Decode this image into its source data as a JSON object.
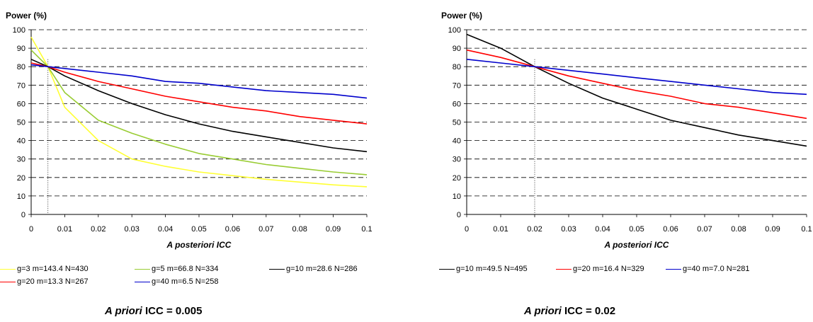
{
  "chart_data": [
    {
      "type": "line",
      "ylabel": "Power (%)",
      "xlabel": "A posteriori ICC",
      "xlim": [
        0,
        0.1
      ],
      "ylim": [
        0,
        100
      ],
      "x_ticks": [
        "0",
        "0.01",
        "0.02",
        "0.03",
        "0.04",
        "0.05",
        "0.06",
        "0.07",
        "0.08",
        "0.09",
        "0.1"
      ],
      "y_ticks": [
        "0",
        "10",
        "20",
        "30",
        "40",
        "50",
        "60",
        "70",
        "80",
        "90",
        "100"
      ],
      "grid": "horizontal dashed",
      "reference_line_x": 0.005,
      "x": [
        0,
        0.005,
        0.01,
        0.02,
        0.03,
        0.04,
        0.05,
        0.06,
        0.07,
        0.08,
        0.09,
        0.1
      ],
      "series": [
        {
          "name": "g=3 m=143.4 N=430",
          "color": "#ffff33",
          "values": [
            96,
            80,
            58,
            40,
            30,
            26,
            23,
            21,
            19,
            17.5,
            16,
            15
          ]
        },
        {
          "name": "g=5 m=66.8 N=334",
          "color": "#99cc33",
          "values": [
            89,
            80,
            66,
            51,
            44,
            38,
            33,
            30,
            27,
            25,
            23,
            21.5
          ]
        },
        {
          "name": "g=10 m=28.6 N=286",
          "color": "#000000",
          "values": [
            84,
            80,
            75,
            67,
            60,
            54,
            49,
            45,
            42,
            39,
            36,
            34
          ]
        },
        {
          "name": "g=20 m=13.3 N=267",
          "color": "#ff0000",
          "values": [
            82,
            80,
            77,
            72,
            68,
            64,
            61,
            58,
            56,
            53,
            51,
            49
          ]
        },
        {
          "name": "g=40 m=6.5 N=258",
          "color": "#0000cc",
          "values": [
            81,
            80,
            79,
            77,
            75,
            72,
            71,
            69,
            67,
            66,
            65,
            63
          ]
        }
      ]
    },
    {
      "type": "line",
      "ylabel": "Power (%)",
      "xlabel": "A posteriori ICC",
      "xlim": [
        0,
        0.1
      ],
      "ylim": [
        0,
        100
      ],
      "x_ticks": [
        "0",
        "0.01",
        "0.02",
        "0.03",
        "0.04",
        "0.05",
        "0.06",
        "0.07",
        "0.08",
        "0.09",
        "0.1"
      ],
      "y_ticks": [
        "0",
        "10",
        "20",
        "30",
        "40",
        "50",
        "60",
        "70",
        "80",
        "90",
        "100"
      ],
      "grid": "horizontal dashed",
      "reference_line_x": 0.02,
      "x": [
        0,
        0.01,
        0.02,
        0.03,
        0.04,
        0.05,
        0.06,
        0.07,
        0.08,
        0.09,
        0.1
      ],
      "series": [
        {
          "name": "g=10  m=49.5 N=495",
          "color": "#000000",
          "values": [
            97.5,
            90,
            80,
            71,
            63,
            57,
            51,
            47,
            43,
            40,
            37
          ]
        },
        {
          "name": "g=20 m=16.4 N=329",
          "color": "#ff0000",
          "values": [
            89,
            85,
            80,
            75,
            71,
            67,
            64,
            60,
            58,
            55,
            52
          ]
        },
        {
          "name": "g=40 m=7.0 N=281",
          "color": "#0000cc",
          "values": [
            84,
            82,
            80,
            78,
            76,
            74,
            72,
            70,
            68,
            66,
            65
          ]
        }
      ]
    }
  ],
  "captions": [
    {
      "italic": "A priori",
      "rest": " ICC = 0.005"
    },
    {
      "italic": "A priori",
      "rest": " ICC = 0.02"
    }
  ]
}
